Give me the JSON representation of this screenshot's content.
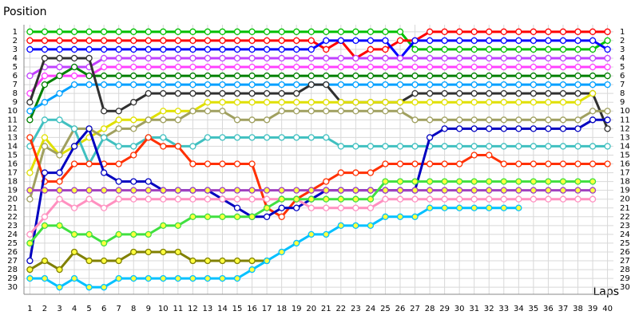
{
  "chart_data": {
    "type": "line",
    "y_label": "Position",
    "x_label": "Laps",
    "x": [
      1,
      2,
      3,
      4,
      5,
      6,
      7,
      8,
      9,
      10,
      11,
      12,
      13,
      14,
      15,
      16,
      17,
      18,
      19,
      20,
      21,
      22,
      23,
      24,
      25,
      26,
      27,
      28,
      29,
      30,
      31,
      32,
      33,
      34,
      35,
      36,
      37,
      38,
      39,
      40
    ],
    "xlim": [
      0.6,
      40.4
    ],
    "xticks": [
      1,
      2,
      3,
      4,
      5,
      6,
      7,
      8,
      9,
      10,
      11,
      12,
      13,
      14,
      15,
      16,
      17,
      18,
      19,
      20,
      21,
      22,
      23,
      24,
      25,
      26,
      27,
      28,
      29,
      30,
      31,
      32,
      33,
      34,
      35,
      36,
      37,
      38,
      39,
      40
    ],
    "ylim": [
      0.2,
      30.8
    ],
    "yticks": [
      1,
      2,
      3,
      4,
      5,
      6,
      7,
      8,
      9,
      10,
      11,
      12,
      13,
      14,
      15,
      16,
      17,
      18,
      19,
      20,
      21,
      22,
      23,
      24,
      25,
      26,
      27,
      28,
      29,
      30
    ],
    "y_inverted": true,
    "grid": true,
    "series": [
      {
        "color": "#00c000",
        "marker_fill": "#ffffff",
        "values": [
          1,
          1,
          1,
          1,
          1,
          1,
          1,
          1,
          1,
          1,
          1,
          1,
          1,
          1,
          1,
          1,
          1,
          1,
          1,
          1,
          1,
          1,
          1,
          1,
          1,
          1,
          3,
          3,
          3,
          3,
          3,
          3,
          3,
          3,
          3,
          3,
          3,
          3,
          3,
          2
        ]
      },
      {
        "color": "#ff0000",
        "marker_fill": "#ffffff",
        "values": [
          2,
          2,
          2,
          2,
          2,
          2,
          2,
          2,
          2,
          2,
          2,
          2,
          2,
          2,
          2,
          2,
          2,
          2,
          2,
          2,
          3,
          2,
          4,
          3,
          3,
          2,
          2,
          1,
          1,
          1,
          1,
          1,
          1,
          1,
          1,
          1,
          1,
          1,
          1,
          1
        ]
      },
      {
        "color": "#0000ff",
        "marker_fill": "#ffffff",
        "values": [
          3,
          3,
          3,
          3,
          3,
          3,
          3,
          3,
          3,
          3,
          3,
          3,
          3,
          3,
          3,
          3,
          3,
          3,
          3,
          3,
          2,
          2,
          2,
          2,
          2,
          4,
          2,
          2,
          2,
          2,
          2,
          2,
          2,
          2,
          2,
          2,
          2,
          2,
          2,
          3
        ]
      },
      {
        "color": "#c040ff",
        "marker_fill": "#ffffff",
        "values": [
          6,
          5,
          5,
          5,
          5,
          4,
          4,
          4,
          4,
          4,
          4,
          4,
          4,
          4,
          4,
          4,
          4,
          4,
          4,
          4,
          4,
          4,
          4,
          4,
          4,
          4,
          4,
          4,
          4,
          4,
          4,
          4,
          4,
          4,
          4,
          4,
          4,
          4,
          4,
          4
        ]
      },
      {
        "color": "#ff40ff",
        "marker_fill": "#ffffff",
        "values": [
          8,
          6,
          6,
          6,
          6,
          5,
          5,
          5,
          5,
          5,
          5,
          5,
          5,
          5,
          5,
          5,
          5,
          5,
          5,
          5,
          5,
          5,
          5,
          5,
          5,
          5,
          5,
          5,
          5,
          5,
          5,
          5,
          5,
          5,
          5,
          5,
          5,
          5,
          5,
          5
        ]
      },
      {
        "color": "#008000",
        "marker_fill": "#ffffff",
        "values": [
          11,
          7,
          6,
          5,
          6,
          6,
          6,
          6,
          6,
          6,
          6,
          6,
          6,
          6,
          6,
          6,
          6,
          6,
          6,
          6,
          6,
          6,
          6,
          6,
          6,
          6,
          6,
          6,
          6,
          6,
          6,
          6,
          6,
          6,
          6,
          6,
          6,
          6,
          6,
          6
        ]
      },
      {
        "color": "#00a0ff",
        "marker_fill": "#ffffff",
        "values": [
          10,
          9,
          8,
          7,
          7,
          7,
          7,
          7,
          7,
          7,
          7,
          7,
          7,
          7,
          7,
          7,
          7,
          7,
          7,
          7,
          7,
          7,
          7,
          7,
          7,
          7,
          7,
          7,
          7,
          7,
          7,
          7,
          7,
          7,
          7,
          7,
          7,
          7,
          7,
          7
        ]
      },
      {
        "color": "#303030",
        "marker_fill": "#ffffff",
        "values": [
          9,
          4,
          4,
          4,
          4,
          10,
          10,
          9,
          8,
          8,
          8,
          8,
          8,
          8,
          8,
          8,
          8,
          8,
          8,
          7,
          7,
          9,
          9,
          9,
          9,
          9,
          8,
          8,
          8,
          8,
          8,
          8,
          8,
          8,
          8,
          8,
          8,
          8,
          8,
          12
        ]
      },
      {
        "color": "#e0e000",
        "marker_fill": "#ffffff",
        "values": [
          17,
          13,
          15,
          14,
          13,
          12,
          11,
          11,
          11,
          10,
          10,
          10,
          9,
          9,
          9,
          9,
          9,
          9,
          9,
          9,
          9,
          9,
          9,
          9,
          9,
          9,
          9,
          9,
          9,
          9,
          9,
          9,
          9,
          9,
          9,
          9,
          9,
          9,
          8,
          null
        ]
      },
      {
        "color": "#a0a060",
        "marker_fill": "#ffffff",
        "values": [
          20,
          14,
          15,
          12,
          12,
          13,
          12,
          12,
          11,
          11,
          11,
          10,
          10,
          10,
          11,
          11,
          11,
          10,
          10,
          10,
          10,
          10,
          10,
          10,
          10,
          10,
          11,
          11,
          11,
          11,
          11,
          11,
          11,
          11,
          11,
          11,
          11,
          11,
          10,
          10
        ]
      },
      {
        "color": "#40c0c0",
        "marker_fill": "#ffffff",
        "values": [
          14,
          11,
          11,
          12,
          16,
          13,
          14,
          14,
          13,
          13,
          14,
          14,
          13,
          13,
          13,
          13,
          13,
          13,
          13,
          13,
          13,
          14,
          14,
          14,
          14,
          14,
          14,
          14,
          14,
          14,
          14,
          14,
          14,
          14,
          14,
          14,
          14,
          14,
          14,
          14
        ]
      },
      {
        "color": "#ff3000",
        "marker_fill": "#ffffff",
        "values": [
          13,
          18,
          18,
          16,
          16,
          16,
          16,
          15,
          13,
          14,
          14,
          16,
          16,
          16,
          16,
          16,
          21,
          22,
          20,
          19,
          18,
          17,
          17,
          17,
          16,
          16,
          16,
          16,
          16,
          16,
          15,
          15,
          16,
          16,
          16,
          16,
          16,
          16,
          16,
          16
        ]
      },
      {
        "color": "#0000c0",
        "marker_fill": "#ffffff",
        "values": [
          27,
          17,
          17,
          14,
          12,
          17,
          18,
          18,
          18,
          19,
          19,
          19,
          19,
          20,
          21,
          22,
          22,
          21,
          21,
          20,
          19,
          19,
          19,
          19,
          19,
          19,
          19,
          13,
          12,
          12,
          12,
          12,
          12,
          12,
          12,
          12,
          12,
          12,
          11,
          11
        ]
      },
      {
        "color": "#ff90c0",
        "marker_fill": "#ffffff",
        "values": [
          24,
          22,
          20,
          21,
          20,
          21,
          20,
          20,
          20,
          20,
          20,
          20,
          20,
          20,
          20,
          20,
          20,
          20,
          20,
          21,
          21,
          21,
          21,
          21,
          20,
          20,
          20,
          20,
          20,
          20,
          20,
          20,
          20,
          20,
          20,
          20,
          20,
          20,
          20,
          null
        ]
      },
      {
        "color": "#a040c0",
        "marker_fill": "#ffff40",
        "values": [
          19,
          19,
          19,
          19,
          19,
          19,
          19,
          19,
          19,
          19,
          19,
          19,
          19,
          19,
          19,
          19,
          19,
          19,
          19,
          19,
          19,
          19,
          19,
          19,
          19,
          19,
          19,
          19,
          19,
          19,
          19,
          19,
          19,
          19,
          19,
          19,
          19,
          19,
          19,
          null
        ]
      },
      {
        "color": "#40e040",
        "marker_fill": "#ffff40",
        "values": [
          25,
          23,
          23,
          24,
          24,
          25,
          24,
          24,
          24,
          23,
          23,
          22,
          22,
          22,
          22,
          22,
          21,
          20,
          20,
          20,
          20,
          20,
          20,
          20,
          18,
          18,
          18,
          18,
          18,
          18,
          18,
          18,
          18,
          18,
          18,
          18,
          18,
          18,
          18,
          null
        ]
      },
      {
        "color": "#808000",
        "marker_fill": "#ffff40",
        "values": [
          28,
          27,
          28,
          26,
          27,
          27,
          27,
          26,
          26,
          26,
          26,
          27,
          27,
          27,
          27,
          27,
          27,
          null,
          null,
          null,
          null,
          null,
          null,
          null,
          null,
          null,
          null,
          null,
          null,
          null,
          null,
          null,
          null,
          null,
          null,
          null,
          null,
          null,
          null,
          null
        ]
      },
      {
        "color": "#00c0ff",
        "marker_fill": "#ffff40",
        "values": [
          29,
          29,
          30,
          29,
          30,
          30,
          29,
          29,
          29,
          29,
          29,
          29,
          29,
          29,
          29,
          28,
          27,
          26,
          25,
          24,
          24,
          23,
          23,
          23,
          22,
          22,
          22,
          21,
          21,
          21,
          21,
          21,
          21,
          21,
          null,
          null,
          null,
          null,
          null,
          null
        ]
      }
    ]
  }
}
